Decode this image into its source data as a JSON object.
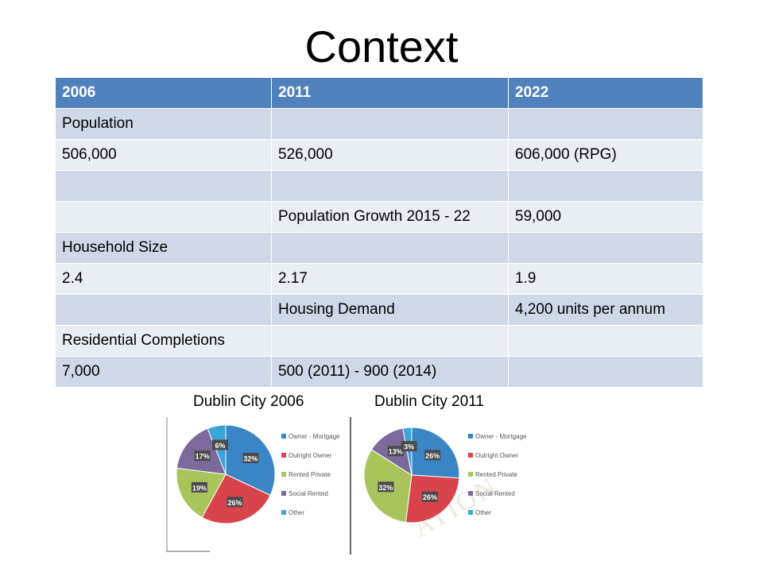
{
  "slide": {
    "title": "Context"
  },
  "table": {
    "headers": [
      "2006",
      "2011",
      "2022"
    ],
    "rows": [
      [
        "Population",
        "",
        ""
      ],
      [
        "506,000",
        "526,000",
        "606,000 (RPG)"
      ],
      [
        "",
        "",
        ""
      ],
      [
        "",
        "Population Growth 2015 - 22",
        "59,000"
      ],
      [
        "Household Size",
        "",
        ""
      ],
      [
        "2.4",
        "2.17",
        "1.9"
      ],
      [
        "",
        "Housing Demand",
        "4,200 units per annum"
      ],
      [
        "Residential Completions",
        "",
        ""
      ],
      [
        "7,000",
        "500 (2011) - 900 (2014)",
        ""
      ]
    ]
  },
  "captions": {
    "left": "Dublin City 2006",
    "right": "Dublin City 2011"
  },
  "watermark": "ATION",
  "chart_data": [
    {
      "type": "pie",
      "title": "Dublin City 2006",
      "categories": [
        "Owner - Mortgage",
        "Outright Owner",
        "Rented Private",
        "Social Rented",
        "Other"
      ],
      "values": [
        32,
        26,
        19,
        17,
        6
      ],
      "labels": [
        "32%",
        "26%",
        "19%",
        "17%",
        "6%"
      ],
      "colors": [
        "#3a85c6",
        "#d9434b",
        "#a9c45a",
        "#7c6a9c",
        "#39a6d8"
      ],
      "legend": "right"
    },
    {
      "type": "pie",
      "title": "Dublin City 2011",
      "categories": [
        "Owner - Mortgage",
        "Outright Owner",
        "Rented Private",
        "Social Rented",
        "Other"
      ],
      "values": [
        26,
        26,
        32,
        13,
        3
      ],
      "labels": [
        "26%",
        "26%",
        "32%",
        "13%",
        "3%"
      ],
      "colors": [
        "#3a85c6",
        "#d9434b",
        "#a9c45a",
        "#7c6a9c",
        "#39a6d8"
      ],
      "legend": "right"
    }
  ]
}
